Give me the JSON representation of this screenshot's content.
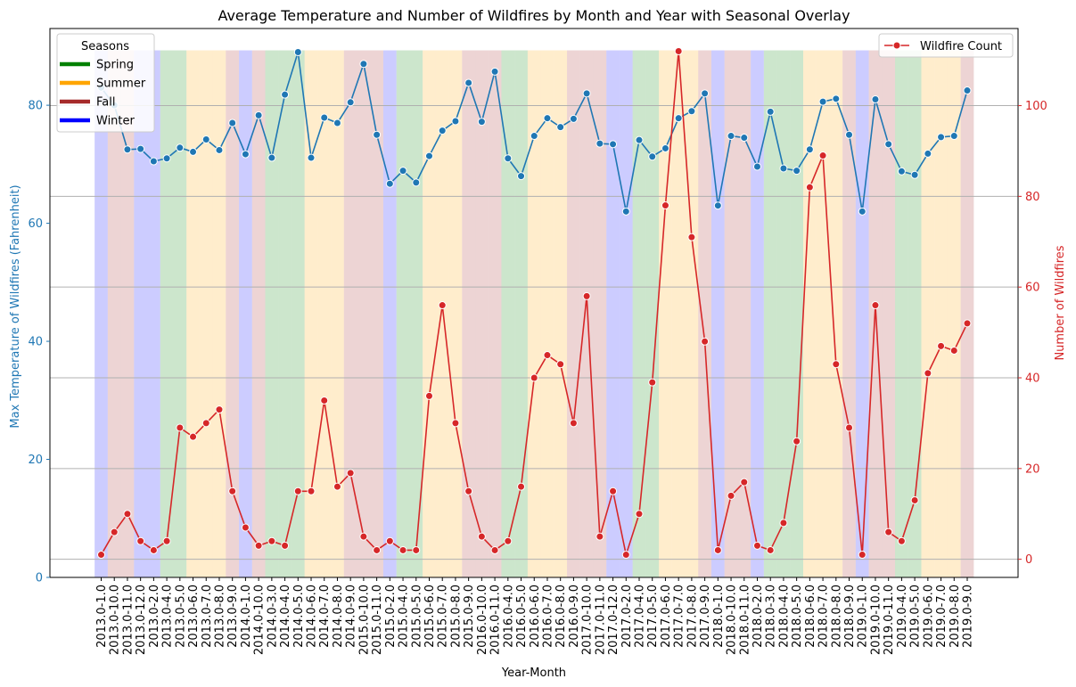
{
  "chart_data": {
    "type": "line",
    "title": "Average Temperature and Number of Wildfires by Month and Year with Seasonal Overlay",
    "xlabel": "Year-Month",
    "ylabel_left": "Max Temperature of Wildfires (Fahrenheit)",
    "ylabel_right": "Number of Wildfires",
    "ylim_left": [
      0,
      93
    ],
    "ylim_right": [
      -4,
      117
    ],
    "yticks_left": [
      "0",
      "20",
      "40",
      "60",
      "80"
    ],
    "yticks_right": [
      "0",
      "20",
      "40",
      "60",
      "80",
      "100"
    ],
    "grid": "horizontal lines on right axis",
    "categories": [
      "2013.0-1.0",
      "2013.0-10.0",
      "2013.0-11.0",
      "2013.0-12.0",
      "2013.0-2.0",
      "2013.0-4.0",
      "2013.0-5.0",
      "2013.0-6.0",
      "2013.0-7.0",
      "2013.0-8.0",
      "2013.0-9.0",
      "2014.0-1.0",
      "2014.0-10.0",
      "2014.0-3.0",
      "2014.0-4.0",
      "2014.0-5.0",
      "2014.0-6.0",
      "2014.0-7.0",
      "2014.0-8.0",
      "2014.0-9.0",
      "2015.0-10.0",
      "2015.0-11.0",
      "2015.0-2.0",
      "2015.0-4.0",
      "2015.0-5.0",
      "2015.0-6.0",
      "2015.0-7.0",
      "2015.0-8.0",
      "2015.0-9.0",
      "2016.0-10.0",
      "2016.0-11.0",
      "2016.0-4.0",
      "2016.0-5.0",
      "2016.0-6.0",
      "2016.0-7.0",
      "2016.0-8.0",
      "2016.0-9.0",
      "2017.0-10.0",
      "2017.0-11.0",
      "2017.0-12.0",
      "2017.0-2.0",
      "2017.0-4.0",
      "2017.0-5.0",
      "2017.0-6.0",
      "2017.0-7.0",
      "2017.0-8.0",
      "2017.0-9.0",
      "2018.0-1.0",
      "2018.0-10.0",
      "2018.0-11.0",
      "2018.0-2.0",
      "2018.0-3.0",
      "2018.0-4.0",
      "2018.0-5.0",
      "2018.0-6.0",
      "2018.0-7.0",
      "2018.0-8.0",
      "2018.0-9.0",
      "2019.0-1.0",
      "2019.0-10.0",
      "2019.0-11.0",
      "2019.0-4.0",
      "2019.0-5.0",
      "2019.0-6.0",
      "2019.0-7.0",
      "2019.0-8.0",
      "2019.0-9.0"
    ],
    "seasons": [
      "Winter",
      "Fall",
      "Fall",
      "Winter",
      "Winter",
      "Spring",
      "Spring",
      "Summer",
      "Summer",
      "Summer",
      "Fall",
      "Winter",
      "Fall",
      "Spring",
      "Spring",
      "Spring",
      "Summer",
      "Summer",
      "Summer",
      "Fall",
      "Fall",
      "Fall",
      "Winter",
      "Spring",
      "Spring",
      "Summer",
      "Summer",
      "Summer",
      "Fall",
      "Fall",
      "Fall",
      "Spring",
      "Spring",
      "Summer",
      "Summer",
      "Summer",
      "Fall",
      "Fall",
      "Fall",
      "Winter",
      "Winter",
      "Spring",
      "Spring",
      "Summer",
      "Summer",
      "Summer",
      "Fall",
      "Winter",
      "Fall",
      "Fall",
      "Winter",
      "Spring",
      "Spring",
      "Spring",
      "Summer",
      "Summer",
      "Summer",
      "Fall",
      "Winter",
      "Fall",
      "Fall",
      "Spring",
      "Spring",
      "Summer",
      "Summer",
      "Summer",
      "Fall"
    ],
    "season_colors": {
      "Spring": "#008000",
      "Summer": "#ffa500",
      "Fall": "#a52a2a",
      "Winter": "#0000ff"
    },
    "season_fill_alpha": 0.2,
    "legend_seasons": {
      "title": "Seasons",
      "placement": "top-left",
      "entries": [
        "Spring",
        "Summer",
        "Fall",
        "Winter"
      ]
    },
    "series": [
      {
        "name": "Max Temperature",
        "axis": "left",
        "color": "#1f77b4",
        "values": [
          83,
          80,
          72.5,
          72.6,
          70.5,
          71,
          72.8,
          72.1,
          74.2,
          72.4,
          77,
          71.7,
          78.3,
          71.1,
          81.8,
          89,
          71.1,
          77.9,
          77,
          80.5,
          87,
          75,
          66.7,
          68.9,
          66.9,
          71.4,
          75.7,
          77.3,
          83.8,
          77.2,
          85.7,
          71,
          68,
          74.8,
          77.8,
          76.3,
          77.7,
          82,
          73.5,
          73.4,
          62,
          74.1,
          71.3,
          72.7,
          77.8,
          79,
          82,
          63,
          74.8,
          74.5,
          69.6,
          78.9,
          69.3,
          68.9,
          72.5,
          80.6,
          81.1,
          75,
          62,
          81,
          73.4,
          68.8,
          68.2,
          71.8,
          74.6,
          74.8,
          82.5
        ]
      },
      {
        "name": "Wildfire Count",
        "axis": "right",
        "color": "#d62728",
        "values": [
          1,
          6,
          10,
          4,
          2,
          4,
          29,
          27,
          30,
          33,
          15,
          7,
          3,
          4,
          3,
          15,
          15,
          35,
          16,
          19,
          5,
          2,
          4,
          2,
          2,
          36,
          56,
          30,
          15,
          5,
          2,
          4,
          16,
          40,
          45,
          43,
          30,
          58,
          5,
          15,
          1,
          10,
          39,
          78,
          112,
          71,
          48,
          2,
          14,
          17,
          3,
          2,
          8,
          26,
          82,
          89,
          43,
          29,
          1,
          56,
          6,
          4,
          13,
          41,
          47,
          46,
          52
        ]
      }
    ],
    "legend_series": {
      "placement": "top-right",
      "entries": [
        "Wildfire Count"
      ]
    }
  }
}
